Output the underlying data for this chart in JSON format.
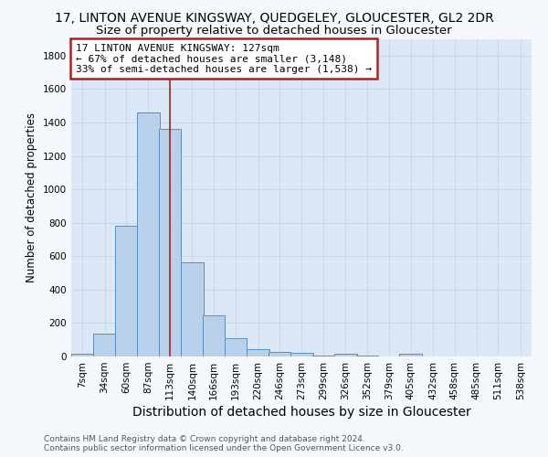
{
  "title": "17, LINTON AVENUE KINGSWAY, QUEDGELEY, GLOUCESTER, GL2 2DR",
  "subtitle": "Size of property relative to detached houses in Gloucester",
  "xlabel": "Distribution of detached houses by size in Gloucester",
  "ylabel": "Number of detached properties",
  "bin_labels": [
    "7sqm",
    "34sqm",
    "60sqm",
    "87sqm",
    "113sqm",
    "140sqm",
    "166sqm",
    "193sqm",
    "220sqm",
    "246sqm",
    "273sqm",
    "299sqm",
    "326sqm",
    "352sqm",
    "379sqm",
    "405sqm",
    "432sqm",
    "458sqm",
    "485sqm",
    "511sqm",
    "538sqm"
  ],
  "bin_left_edges": [
    7,
    34,
    60,
    87,
    113,
    140,
    166,
    193,
    220,
    246,
    273,
    299,
    326,
    352,
    379,
    405,
    432,
    458,
    485,
    511,
    538
  ],
  "bar_heights": [
    15,
    135,
    780,
    1460,
    1360,
    565,
    245,
    110,
    42,
    25,
    20,
    8,
    15,
    3,
    0,
    18,
    0,
    0,
    0,
    0,
    0
  ],
  "bar_color": "#b8d0ea",
  "bar_edge_color": "#5a8fc0",
  "vline_x": 127,
  "vline_color": "#aa2222",
  "ylim": [
    0,
    1900
  ],
  "yticks": [
    0,
    200,
    400,
    600,
    800,
    1000,
    1200,
    1400,
    1600,
    1800
  ],
  "annotation_text": "17 LINTON AVENUE KINGSWAY: 127sqm\n← 67% of detached houses are smaller (3,148)\n33% of semi-detached houses are larger (1,538) →",
  "annotation_box_color": "#ffffff",
  "annotation_box_edge_color": "#aa2222",
  "grid_color": "#c8d8ea",
  "plot_bg_color": "#dce8f5",
  "figure_bg_color": "#f5f8fc",
  "footer_line1": "Contains HM Land Registry data © Crown copyright and database right 2024.",
  "footer_line2": "Contains public sector information licensed under the Open Government Licence v3.0.",
  "title_fontsize": 10,
  "subtitle_fontsize": 9.5,
  "xlabel_fontsize": 10,
  "ylabel_fontsize": 8.5,
  "tick_fontsize": 7.5,
  "annotation_fontsize": 8,
  "footer_fontsize": 6.5,
  "bin_width": 27
}
